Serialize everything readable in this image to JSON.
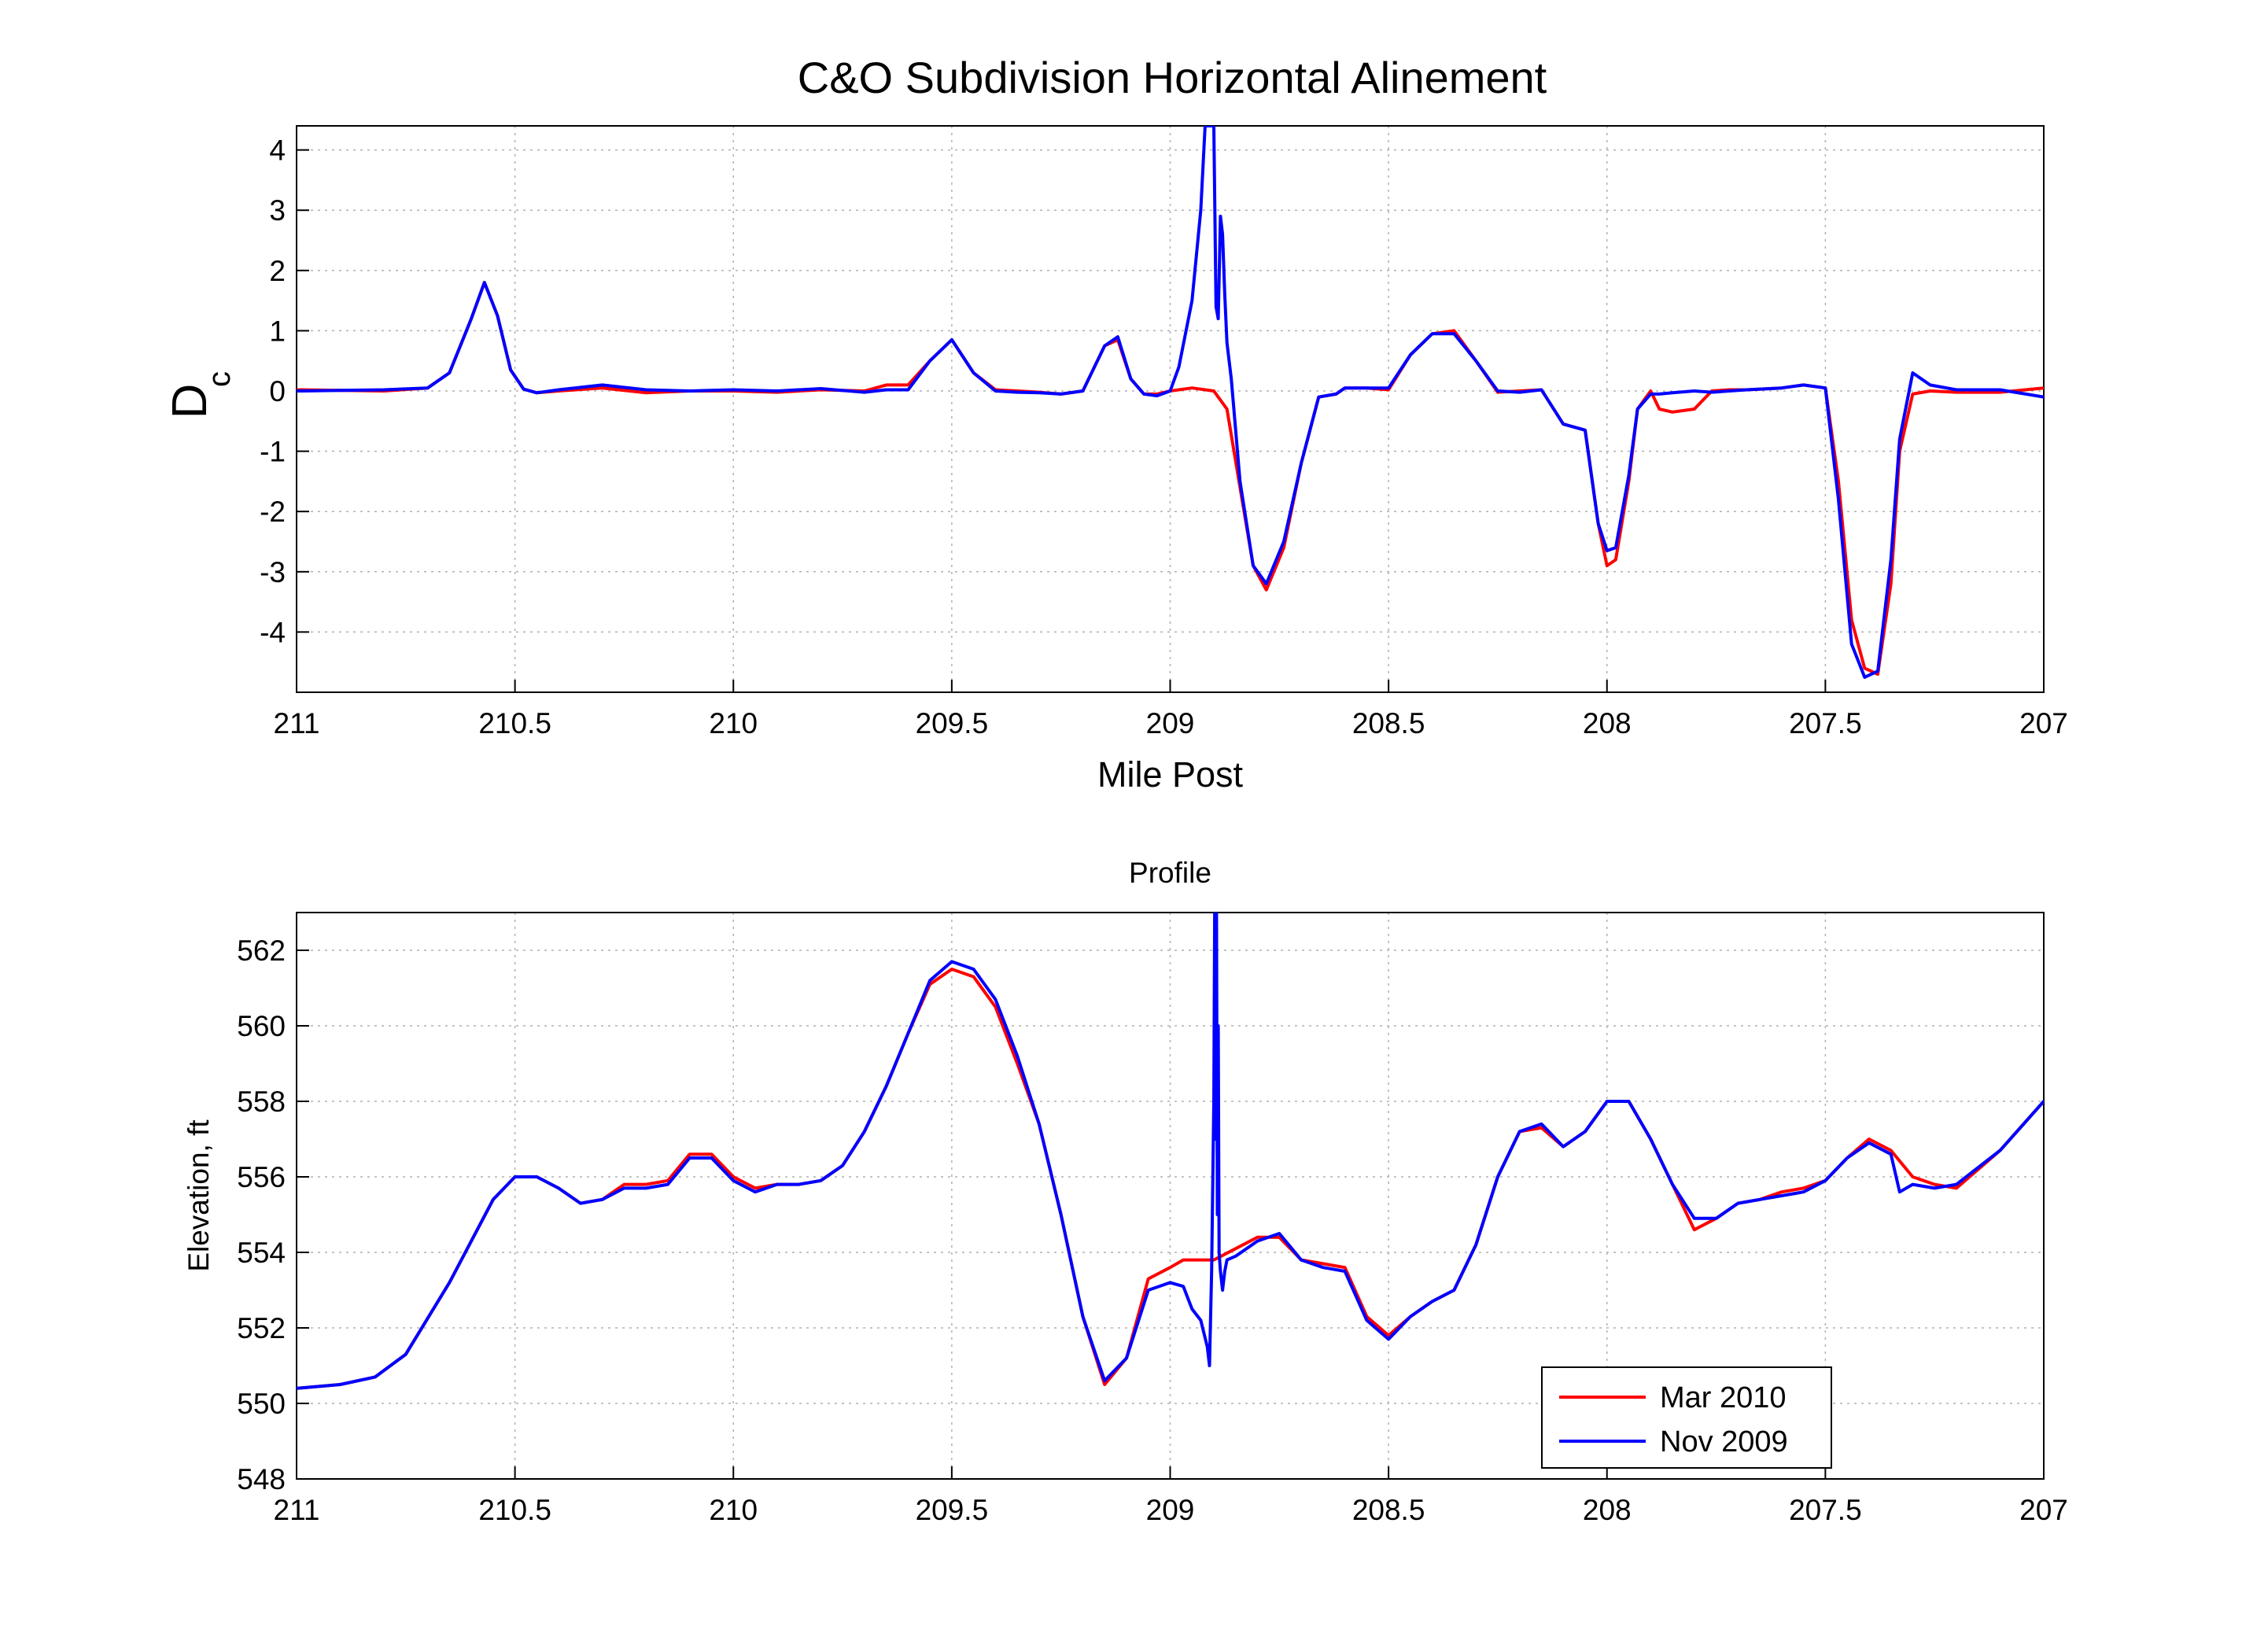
{
  "figure": {
    "title": "C&O Subdivision Horizontal Alinement",
    "colors": {
      "mar_2010": "#ff0000",
      "nov_2009": "#0000ff",
      "grid": "#b0b0b0",
      "axes": "#000000"
    }
  },
  "chart_data": [
    {
      "type": "line",
      "title": "",
      "xlabel": "Mile Post",
      "ylabel": "D",
      "ylabel_subscript": "c",
      "xlim": [
        211,
        207
      ],
      "x_reversed": true,
      "ylim": [
        -5,
        4.4
      ],
      "grid": true,
      "xticks": [
        211,
        210.5,
        210,
        209.5,
        209,
        208.5,
        208,
        207.5,
        207
      ],
      "xtick_labels": [
        "211",
        "210.5",
        "210",
        "209.5",
        "209",
        "208.5",
        "208",
        "207.5",
        "207"
      ],
      "yticks": [
        4,
        3,
        2,
        1,
        0,
        -1,
        -2,
        -3,
        -4
      ],
      "ytick_labels": [
        "4",
        "3",
        "2",
        "1",
        "0",
        "-1",
        "-2",
        "-3",
        "-4"
      ],
      "series": [
        {
          "name": "Mar 2010",
          "color": "#ff0000",
          "x": [
            211,
            210.8,
            210.7,
            210.65,
            210.6,
            210.57,
            210.54,
            210.51,
            210.48,
            210.45,
            210.4,
            210.3,
            210.2,
            210.1,
            210,
            209.9,
            209.8,
            209.7,
            209.65,
            209.6,
            209.55,
            209.5,
            209.45,
            209.4,
            209.35,
            209.3,
            209.25,
            209.2,
            209.15,
            209.12,
            209.09,
            209.06,
            209.03,
            209,
            208.95,
            208.9,
            208.87,
            208.84,
            208.81,
            208.78,
            208.74,
            208.7,
            208.66,
            208.62,
            208.6,
            208.55,
            208.5,
            208.45,
            208.4,
            208.35,
            208.3,
            208.25,
            208.2,
            208.15,
            208.1,
            208.05,
            208.02,
            208,
            207.98,
            207.95,
            207.93,
            207.9,
            207.88,
            207.85,
            207.8,
            207.76,
            207.72,
            207.68,
            207.6,
            207.55,
            207.5,
            207.47,
            207.44,
            207.41,
            207.38,
            207.35,
            207.33,
            207.3,
            207.26,
            207.2,
            207.1,
            207
          ],
          "y": [
            0.02,
            0.0,
            0.05,
            0.3,
            1.2,
            1.8,
            1.25,
            0.35,
            0.03,
            -0.03,
            0.0,
            0.05,
            -0.03,
            0.0,
            0.0,
            -0.02,
            0.02,
            0.0,
            0.1,
            0.1,
            0.5,
            0.85,
            0.3,
            0.02,
            0.0,
            -0.02,
            -0.05,
            0.0,
            0.75,
            0.85,
            0.2,
            -0.05,
            -0.05,
            0.0,
            0.05,
            0.0,
            -0.3,
            -1.6,
            -2.9,
            -3.3,
            -2.6,
            -1.2,
            -0.1,
            -0.05,
            0.05,
            0.05,
            0.02,
            0.6,
            0.95,
            1.0,
            0.5,
            -0.02,
            0.0,
            0.02,
            -0.55,
            -0.65,
            -2.2,
            -2.9,
            -2.8,
            -1.5,
            -0.3,
            0.0,
            -0.3,
            -0.35,
            -0.3,
            0.0,
            0.02,
            0.02,
            0.05,
            0.1,
            0.05,
            -1.5,
            -3.8,
            -4.6,
            -4.7,
            -3.2,
            -1.0,
            -0.05,
            0.0,
            -0.02,
            -0.02,
            0.05
          ]
        },
        {
          "name": "Nov 2009",
          "color": "#0000ff",
          "x": [
            211,
            210.8,
            210.7,
            210.65,
            210.6,
            210.57,
            210.54,
            210.51,
            210.48,
            210.45,
            210.4,
            210.3,
            210.2,
            210.1,
            210,
            209.9,
            209.8,
            209.7,
            209.65,
            209.6,
            209.55,
            209.5,
            209.45,
            209.4,
            209.35,
            209.3,
            209.25,
            209.2,
            209.15,
            209.12,
            209.09,
            209.06,
            209.03,
            209,
            208.98,
            208.95,
            208.93,
            208.92,
            208.91,
            208.905,
            208.9,
            208.895,
            208.89,
            208.885,
            208.88,
            208.875,
            208.87,
            208.86,
            208.84,
            208.81,
            208.78,
            208.74,
            208.7,
            208.66,
            208.62,
            208.6,
            208.55,
            208.5,
            208.45,
            208.4,
            208.35,
            208.3,
            208.25,
            208.2,
            208.15,
            208.1,
            208.05,
            208.02,
            208,
            207.98,
            207.95,
            207.93,
            207.9,
            207.88,
            207.85,
            207.8,
            207.76,
            207.72,
            207.68,
            207.6,
            207.55,
            207.5,
            207.47,
            207.44,
            207.41,
            207.38,
            207.35,
            207.33,
            207.3,
            207.26,
            207.2,
            207.1,
            207
          ],
          "y": [
            0.0,
            0.02,
            0.05,
            0.3,
            1.2,
            1.8,
            1.25,
            0.35,
            0.03,
            -0.03,
            0.02,
            0.1,
            0.02,
            0.0,
            0.02,
            0.0,
            0.04,
            -0.02,
            0.02,
            0.02,
            0.5,
            0.85,
            0.3,
            0.0,
            -0.02,
            -0.03,
            -0.05,
            0.0,
            0.75,
            0.9,
            0.2,
            -0.05,
            -0.08,
            0.0,
            0.4,
            1.5,
            3.0,
            4.4,
            4.4,
            4.4,
            4.4,
            1.4,
            1.2,
            2.9,
            2.6,
            1.6,
            0.8,
            0.2,
            -1.5,
            -2.9,
            -3.2,
            -2.5,
            -1.2,
            -0.1,
            -0.05,
            0.05,
            0.05,
            0.05,
            0.6,
            0.95,
            0.95,
            0.5,
            0.0,
            -0.02,
            0.02,
            -0.55,
            -0.65,
            -2.2,
            -2.65,
            -2.6,
            -1.4,
            -0.3,
            -0.05,
            -0.05,
            -0.03,
            0.0,
            -0.02,
            0.0,
            0.02,
            0.05,
            0.1,
            0.05,
            -1.8,
            -4.2,
            -4.75,
            -4.65,
            -2.8,
            -0.8,
            0.3,
            0.1,
            0.02,
            0.02,
            -0.1
          ]
        }
      ]
    },
    {
      "type": "line",
      "title": "Profile",
      "xlabel": "",
      "ylabel": "Elevation, ft",
      "xlim": [
        211,
        207
      ],
      "x_reversed": true,
      "ylim": [
        548,
        563
      ],
      "grid": true,
      "xticks": [
        211,
        210.5,
        210,
        209.5,
        209,
        208.5,
        208,
        207.5,
        207
      ],
      "xtick_labels": [
        "211",
        "210.5",
        "210",
        "209.5",
        "209",
        "208.5",
        "208",
        "207.5",
        "207"
      ],
      "yticks": [
        562,
        560,
        558,
        556,
        554,
        552,
        550,
        548
      ],
      "ytick_labels": [
        "562",
        "560",
        "558",
        "556",
        "554",
        "552",
        "550",
        "548"
      ],
      "legend": {
        "position": "lower-right",
        "entries": [
          "Mar 2010",
          "Nov 2009"
        ]
      },
      "series": [
        {
          "name": "Mar 2010",
          "color": "#ff0000",
          "x": [
            211,
            210.9,
            210.82,
            210.75,
            210.65,
            210.55,
            210.5,
            210.45,
            210.4,
            210.35,
            210.3,
            210.25,
            210.2,
            210.15,
            210.1,
            210.05,
            210,
            209.95,
            209.9,
            209.85,
            209.8,
            209.75,
            209.7,
            209.65,
            209.6,
            209.55,
            209.5,
            209.45,
            209.4,
            209.35,
            209.3,
            209.25,
            209.2,
            209.15,
            209.1,
            209.05,
            209,
            208.97,
            208.93,
            208.9,
            208.85,
            208.8,
            208.75,
            208.7,
            208.65,
            208.6,
            208.55,
            208.5,
            208.45,
            208.4,
            208.35,
            208.3,
            208.25,
            208.2,
            208.15,
            208.1,
            208.05,
            208,
            207.95,
            207.9,
            207.85,
            207.8,
            207.75,
            207.7,
            207.65,
            207.6,
            207.55,
            207.5,
            207.45,
            207.4,
            207.35,
            207.3,
            207.25,
            207.2,
            207.1,
            207
          ],
          "y": [
            550.4,
            550.5,
            550.7,
            551.3,
            553.2,
            555.4,
            556.0,
            556.0,
            555.7,
            555.3,
            555.4,
            555.8,
            555.8,
            555.9,
            556.6,
            556.6,
            556.0,
            555.7,
            555.8,
            555.8,
            555.9,
            556.3,
            557.2,
            558.4,
            559.8,
            561.1,
            561.5,
            561.3,
            560.5,
            559.0,
            557.4,
            555.0,
            552.3,
            550.5,
            551.2,
            553.3,
            553.6,
            553.8,
            553.8,
            553.8,
            554.1,
            554.4,
            554.4,
            553.8,
            553.7,
            553.6,
            552.3,
            551.8,
            552.3,
            552.7,
            553.0,
            554.2,
            556.0,
            557.2,
            557.3,
            556.8,
            557.2,
            558.0,
            558.0,
            557.0,
            555.8,
            554.6,
            554.9,
            555.3,
            555.4,
            555.6,
            555.7,
            555.9,
            556.5,
            557.0,
            556.7,
            556.0,
            555.8,
            555.7,
            556.7,
            558.0
          ]
        },
        {
          "name": "Nov 2009",
          "color": "#0000ff",
          "x": [
            211,
            210.9,
            210.82,
            210.75,
            210.65,
            210.55,
            210.5,
            210.45,
            210.4,
            210.35,
            210.3,
            210.25,
            210.2,
            210.15,
            210.1,
            210.05,
            210,
            209.95,
            209.9,
            209.85,
            209.8,
            209.75,
            209.7,
            209.65,
            209.6,
            209.55,
            209.5,
            209.45,
            209.4,
            209.35,
            209.3,
            209.25,
            209.2,
            209.15,
            209.1,
            209.05,
            209,
            208.97,
            208.95,
            208.93,
            208.915,
            208.91,
            208.905,
            208.9,
            208.898,
            208.896,
            208.894,
            208.892,
            208.89,
            208.888,
            208.885,
            208.88,
            208.875,
            208.87,
            208.85,
            208.8,
            208.75,
            208.7,
            208.65,
            208.6,
            208.55,
            208.5,
            208.45,
            208.4,
            208.35,
            208.3,
            208.25,
            208.2,
            208.15,
            208.1,
            208.05,
            208,
            207.95,
            207.9,
            207.85,
            207.8,
            207.75,
            207.7,
            207.65,
            207.6,
            207.55,
            207.5,
            207.45,
            207.4,
            207.35,
            207.33,
            207.3,
            207.25,
            207.2,
            207.1,
            207
          ],
          "y": [
            550.4,
            550.5,
            550.7,
            551.3,
            553.2,
            555.4,
            556.0,
            556.0,
            555.7,
            555.3,
            555.4,
            555.7,
            555.7,
            555.8,
            556.5,
            556.5,
            555.9,
            555.6,
            555.8,
            555.8,
            555.9,
            556.3,
            557.2,
            558.4,
            559.8,
            561.2,
            561.7,
            561.5,
            560.7,
            559.2,
            557.4,
            555.0,
            552.3,
            550.6,
            551.2,
            553.0,
            553.2,
            553.1,
            552.5,
            552.2,
            551.5,
            551.0,
            553.5,
            558.0,
            563.0,
            557.0,
            563.0,
            555.0,
            560.0,
            554.0,
            553.5,
            553.0,
            553.5,
            553.8,
            553.9,
            554.3,
            554.5,
            553.8,
            553.6,
            553.5,
            552.2,
            551.7,
            552.3,
            552.7,
            553.0,
            554.2,
            556.0,
            557.2,
            557.4,
            556.8,
            557.2,
            558.0,
            558.0,
            557.0,
            555.8,
            554.9,
            554.9,
            555.3,
            555.4,
            555.5,
            555.6,
            555.9,
            556.5,
            556.9,
            556.6,
            555.6,
            555.8,
            555.7,
            555.8,
            556.7,
            558.0
          ]
        }
      ]
    }
  ]
}
